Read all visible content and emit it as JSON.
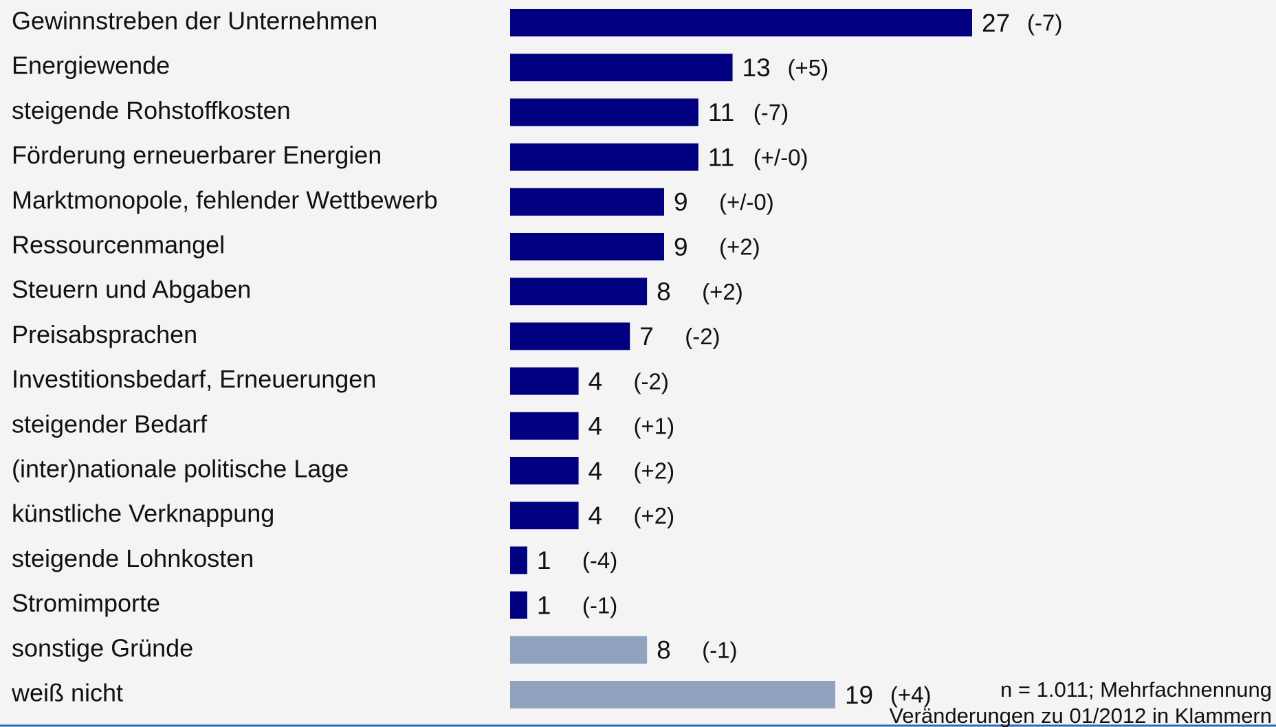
{
  "chart_data": {
    "type": "bar",
    "orientation": "horizontal",
    "categories": [
      "Gewinnstreben der Unternehmen",
      "Energiewende",
      "steigende Rohstoffkosten",
      "Förderung erneuerbarer Energien",
      "Marktmonopole, fehlender Wettbewerb",
      "Ressourcenmangel",
      "Steuern und Abgaben",
      "Preisabsprachen",
      "Investitionsbedarf, Erneuerungen",
      "steigender Bedarf",
      "(inter)nationale politische Lage",
      "künstliche Verknappung",
      "steigende Lohnkosten",
      "Stromimporte",
      "sonstige Gründe",
      "weiß nicht"
    ],
    "values": [
      27,
      13,
      11,
      11,
      9,
      9,
      8,
      7,
      4,
      4,
      4,
      4,
      1,
      1,
      8,
      19
    ],
    "changes": [
      "(-7)",
      "(+5)",
      "(-7)",
      "(+/-0)",
      "(+/-0)",
      "(+2)",
      "(+2)",
      "(-2)",
      "(-2)",
      "(+1)",
      "(+2)",
      "(+2)",
      "(-4)",
      "(-1)",
      "(-1)",
      "(+4)"
    ],
    "colors": [
      "#000080",
      "#000080",
      "#000080",
      "#000080",
      "#000080",
      "#000080",
      "#000080",
      "#000080",
      "#000080",
      "#000080",
      "#000080",
      "#000080",
      "#000080",
      "#000080",
      "#8fa3bf",
      "#8fa3bf"
    ],
    "notes": [
      "n = 1.011; Mehrfachnennung",
      "Veränderungen zu 01/2012 in Klammern"
    ]
  }
}
